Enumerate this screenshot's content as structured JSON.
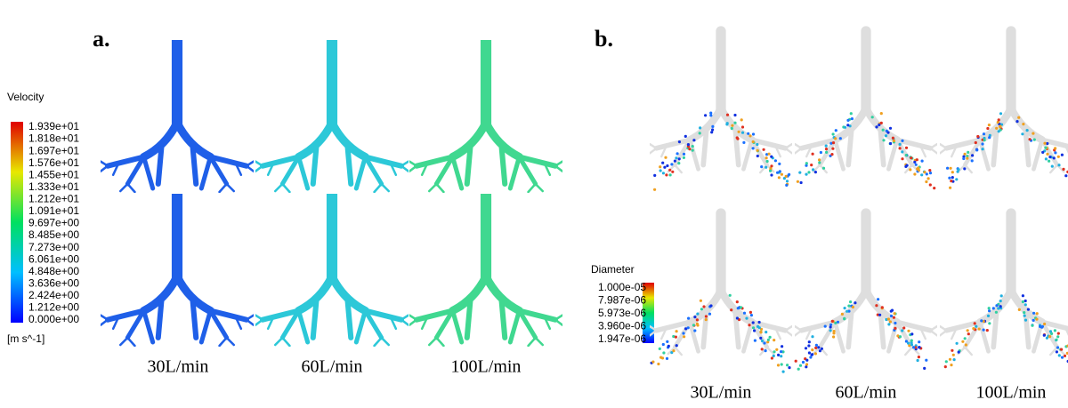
{
  "panel_a": {
    "label": "a.",
    "legend_title": "Velocity",
    "legend_ticks": [
      "1.939e+01",
      "1.818e+01",
      "1.697e+01",
      "1.576e+01",
      "1.455e+01",
      "1.333e+01",
      "1.212e+01",
      "1.091e+01",
      "9.697e+00",
      "8.485e+00",
      "7.273e+00",
      "6.061e+00",
      "4.848e+00",
      "3.636e+00",
      "2.424e+00",
      "1.212e+00",
      "0.000e+00"
    ],
    "unit": "[m s^-1]",
    "columns": [
      "30L/min",
      "60L/min",
      "100L/min"
    ]
  },
  "panel_b": {
    "label": "b.",
    "legend_title": "Diameter",
    "legend_ticks": [
      "1.000e-05",
      "7.987e-06",
      "5.973e-06",
      "3.960e-06",
      "1.947e-06"
    ],
    "columns": [
      "30L/min",
      "60L/min",
      "100L/min"
    ]
  }
}
